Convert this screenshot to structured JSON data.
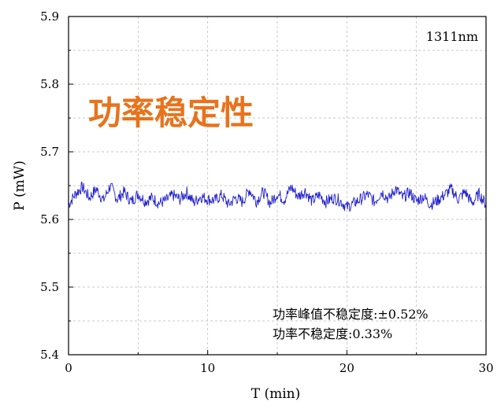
{
  "chart_data": {
    "type": "line",
    "xlabel": "T (min)",
    "ylabel": "P (mW)",
    "xlim": [
      0,
      30
    ],
    "ylim": [
      5.4,
      5.9
    ],
    "xticks": [
      0,
      10,
      20,
      30
    ],
    "yticks": [
      5.4,
      5.5,
      5.6,
      5.7,
      5.8,
      5.9
    ],
    "grid": true,
    "wavelength_label": "1311nm",
    "headline": "功率稳定性",
    "notes": [
      "功率峰值不稳定度:±0.52%",
      "功率不稳定度:0.33%"
    ],
    "colors": {
      "series": "#1f1fcf",
      "headline": "#e8731c",
      "grid": "#b8b8b8"
    },
    "series": [
      {
        "x": [
          0,
          0.5,
          1,
          1.5,
          2,
          2.5,
          3,
          3.5,
          4,
          4.5,
          5,
          5.5,
          6,
          6.5,
          7,
          7.5,
          8,
          8.5,
          9,
          9.5,
          10,
          10.5,
          11,
          11.5,
          12,
          12.5,
          13,
          13.5,
          14,
          14.5,
          15,
          15.5,
          16,
          16.5,
          17,
          17.5,
          18,
          18.5,
          19,
          19.5,
          20,
          20.5,
          21,
          21.5,
          22,
          22.5,
          23,
          23.5,
          24,
          24.5,
          25,
          25.5,
          26,
          26.5,
          27,
          27.5,
          28,
          28.5,
          29,
          29.5,
          30
        ],
        "y": [
          5.622,
          5.638,
          5.648,
          5.632,
          5.645,
          5.628,
          5.65,
          5.63,
          5.641,
          5.626,
          5.638,
          5.627,
          5.632,
          5.624,
          5.628,
          5.636,
          5.63,
          5.64,
          5.625,
          5.634,
          5.63,
          5.628,
          5.636,
          5.622,
          5.632,
          5.626,
          5.644,
          5.627,
          5.641,
          5.624,
          5.638,
          5.629,
          5.648,
          5.634,
          5.642,
          5.627,
          5.636,
          5.626,
          5.632,
          5.628,
          5.618,
          5.624,
          5.63,
          5.637,
          5.626,
          5.641,
          5.63,
          5.646,
          5.632,
          5.64,
          5.627,
          5.634,
          5.622,
          5.628,
          5.636,
          5.645,
          5.63,
          5.641,
          5.624,
          5.638,
          5.622
        ]
      }
    ]
  }
}
